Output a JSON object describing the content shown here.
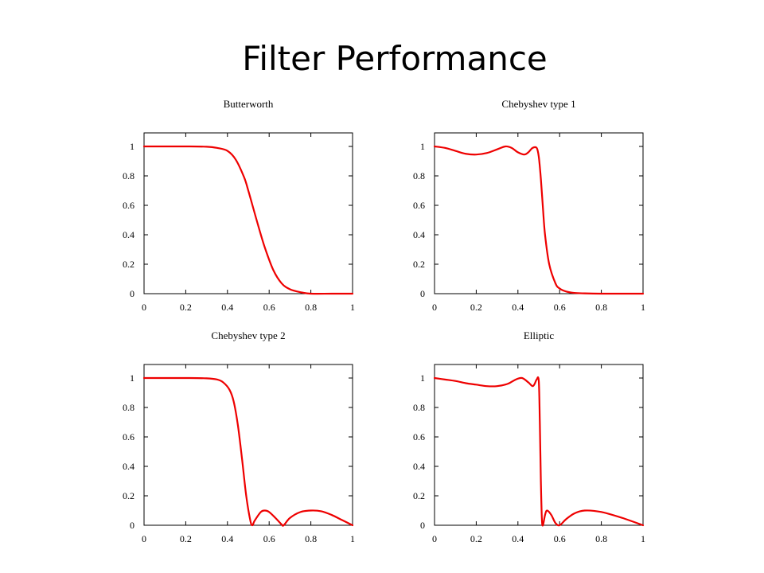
{
  "slide": {
    "title": "Filter Performance"
  },
  "chart_data": [
    {
      "type": "line",
      "title": "Butterworth",
      "xlim": [
        0,
        1
      ],
      "ylim": [
        0,
        1
      ],
      "xticks": [
        "0",
        "0.2",
        "0.4",
        "0.6",
        "0.8",
        "1"
      ],
      "yticks": [
        "0",
        "0.2",
        "0.4",
        "0.6",
        "0.8",
        "1"
      ],
      "grid": false,
      "color": "#ee0000",
      "x": [
        0,
        0.1,
        0.2,
        0.3,
        0.35,
        0.4,
        0.44,
        0.48,
        0.5,
        0.52,
        0.55,
        0.58,
        0.62,
        0.66,
        0.7,
        0.75,
        0.8,
        0.9,
        1.0
      ],
      "y": [
        1,
        1,
        1,
        0.998,
        0.99,
        0.97,
        0.91,
        0.79,
        0.7,
        0.6,
        0.45,
        0.31,
        0.16,
        0.07,
        0.03,
        0.01,
        0.0,
        0.0,
        0.0
      ]
    },
    {
      "type": "line",
      "title": "Chebyshev type 1",
      "xlim": [
        0,
        1
      ],
      "ylim": [
        0,
        1
      ],
      "xticks": [
        "0",
        "0.2",
        "0.4",
        "0.6",
        "0.8",
        "1"
      ],
      "yticks": [
        "0",
        "0.2",
        "0.4",
        "0.6",
        "0.8",
        "1"
      ],
      "grid": false,
      "color": "#ee0000",
      "x": [
        0,
        0.05,
        0.1,
        0.15,
        0.2,
        0.25,
        0.3,
        0.34,
        0.37,
        0.4,
        0.43,
        0.45,
        0.47,
        0.49,
        0.5,
        0.51,
        0.52,
        0.53,
        0.55,
        0.58,
        0.6,
        0.63,
        0.67,
        0.72,
        0.8,
        0.9,
        1.0
      ],
      "y": [
        1,
        0.99,
        0.97,
        0.95,
        0.945,
        0.955,
        0.98,
        1.0,
        0.99,
        0.96,
        0.945,
        0.96,
        0.99,
        0.99,
        0.93,
        0.78,
        0.58,
        0.4,
        0.2,
        0.07,
        0.035,
        0.015,
        0.005,
        0.002,
        0.0,
        0.0,
        0.0
      ]
    },
    {
      "type": "line",
      "title": "Chebyshev type 2",
      "xlim": [
        0,
        1
      ],
      "ylim": [
        0,
        1
      ],
      "xticks": [
        "0",
        "0.2",
        "0.4",
        "0.6",
        "0.8",
        "1"
      ],
      "yticks": [
        "0",
        "0.2",
        "0.4",
        "0.6",
        "0.8",
        "1"
      ],
      "grid": false,
      "color": "#ee0000",
      "x": [
        0,
        0.1,
        0.2,
        0.3,
        0.35,
        0.38,
        0.41,
        0.43,
        0.45,
        0.47,
        0.49,
        0.51,
        0.52,
        0.53,
        0.56,
        0.58,
        0.6,
        0.63,
        0.66,
        0.67,
        0.7,
        0.75,
        0.8,
        0.85,
        0.9,
        0.95,
        1.0
      ],
      "y": [
        1,
        1,
        1,
        0.998,
        0.99,
        0.97,
        0.92,
        0.84,
        0.68,
        0.45,
        0.2,
        0.03,
        0.0,
        0.03,
        0.09,
        0.1,
        0.09,
        0.05,
        0.005,
        0.0,
        0.05,
        0.09,
        0.1,
        0.095,
        0.07,
        0.035,
        0.0
      ]
    },
    {
      "type": "line",
      "title": "Elliptic",
      "xlim": [
        0,
        1
      ],
      "ylim": [
        0,
        1
      ],
      "xticks": [
        "0",
        "0.2",
        "0.4",
        "0.6",
        "0.8",
        "1"
      ],
      "yticks": [
        "0",
        "0.2",
        "0.4",
        "0.6",
        "0.8",
        "1"
      ],
      "grid": false,
      "color": "#ee0000",
      "x": [
        0,
        0.05,
        0.1,
        0.15,
        0.2,
        0.25,
        0.3,
        0.35,
        0.39,
        0.42,
        0.45,
        0.47,
        0.48,
        0.49,
        0.5,
        0.505,
        0.51,
        0.515,
        0.52,
        0.53,
        0.54,
        0.56,
        0.58,
        0.6,
        0.63,
        0.67,
        0.72,
        0.8,
        0.9,
        1.0
      ],
      "y": [
        1,
        0.99,
        0.98,
        0.965,
        0.955,
        0.945,
        0.945,
        0.96,
        0.99,
        1.0,
        0.97,
        0.945,
        0.96,
        0.99,
        0.98,
        0.7,
        0.3,
        0.04,
        0.0,
        0.07,
        0.1,
        0.07,
        0.015,
        0.0,
        0.04,
        0.08,
        0.1,
        0.09,
        0.05,
        0.0
      ]
    }
  ]
}
